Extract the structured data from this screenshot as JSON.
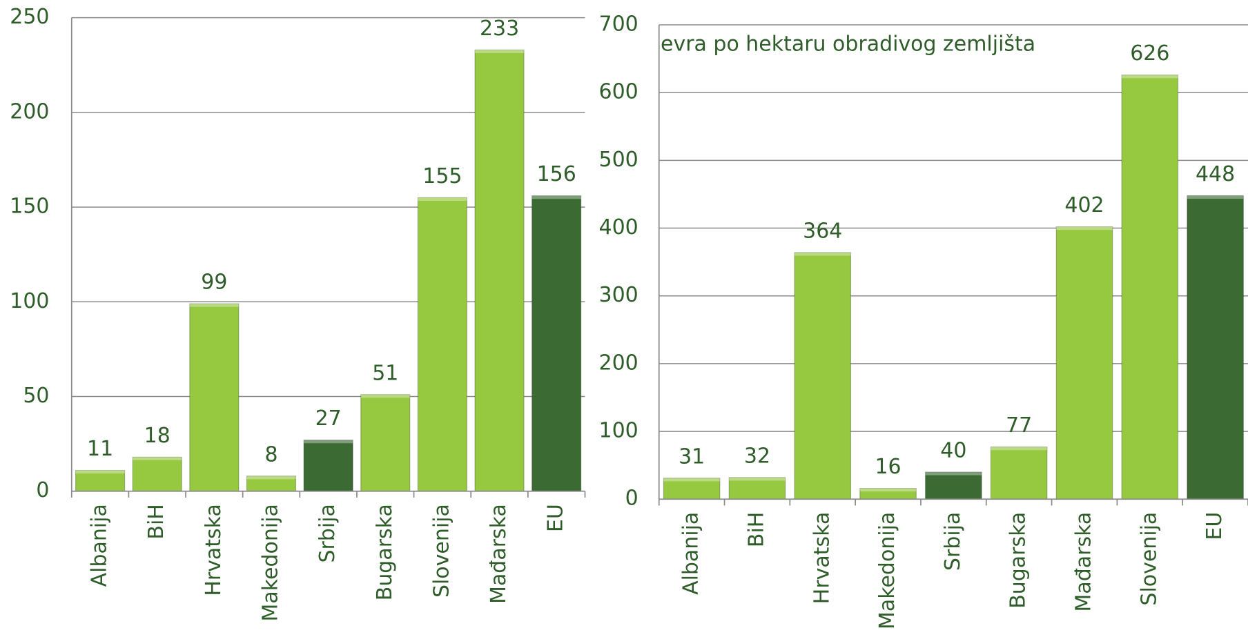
{
  "chart_data": [
    {
      "type": "bar",
      "categories": [
        "Albanija",
        "BiH",
        "Hrvatska",
        "Makedonija",
        "Srbija",
        "Bugarska",
        "Slovenija",
        "Mađarska",
        "EU"
      ],
      "values": [
        11,
        18,
        99,
        8,
        27,
        51,
        155,
        233,
        156
      ],
      "colors": [
        "#96c840",
        "#96c840",
        "#96c840",
        "#96c840",
        "#3b6b33",
        "#96c840",
        "#96c840",
        "#96c840",
        "#3b6b33"
      ],
      "ylim": [
        0,
        250
      ],
      "yticks": [
        0,
        50,
        100,
        150,
        200,
        250
      ],
      "grid": true
    },
    {
      "type": "bar",
      "annotation": "evra  po hektaru obradivog zemljišta",
      "categories": [
        "Albanija",
        "BiH",
        "Hrvatska",
        "Makedonija",
        "Srbija",
        "Bugarska",
        "Mađarska",
        "Slovenija",
        "EU"
      ],
      "values": [
        31,
        32,
        364,
        16,
        40,
        77,
        402,
        626,
        448
      ],
      "colors": [
        "#96c840",
        "#96c840",
        "#96c840",
        "#96c840",
        "#3b6b33",
        "#96c840",
        "#96c840",
        "#96c840",
        "#3b6b33"
      ],
      "ylim": [
        0,
        700
      ],
      "yticks": [
        0,
        100,
        200,
        300,
        400,
        500,
        600,
        700
      ],
      "grid": true
    }
  ]
}
